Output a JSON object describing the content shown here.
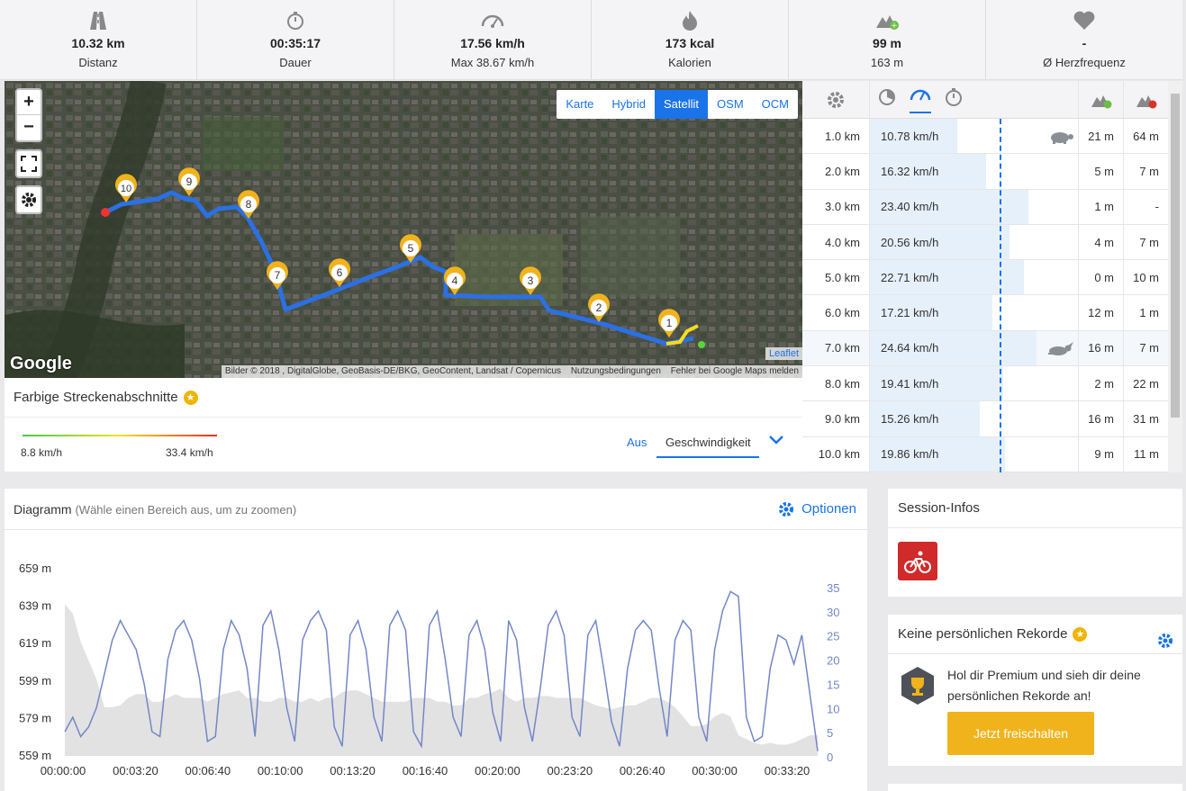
{
  "stats": [
    {
      "icon": "road-icon",
      "value": "10.32 km",
      "label": "Distanz"
    },
    {
      "icon": "stopwatch-icon",
      "value": "00:35:17",
      "label": "Dauer"
    },
    {
      "icon": "speedometer-icon",
      "value": "17.56 km/h",
      "label": "Max 38.67 km/h"
    },
    {
      "icon": "flame-icon",
      "value": "173 kcal",
      "label": "Kalorien"
    },
    {
      "icon": "elevation-up-icon",
      "value": "99 m",
      "label": "163 m"
    },
    {
      "icon": "heart-icon",
      "value": "-",
      "label": "Ø Herzfrequenz"
    }
  ],
  "map": {
    "zoom_in": "+",
    "zoom_out": "−",
    "layers": [
      "Karte",
      "Hybrid",
      "Satellit",
      "OSM",
      "OCM"
    ],
    "active_layer": "Satellit",
    "leaflet": "Leaflet",
    "google": "Google",
    "attribution": "Bilder © 2018 , DigitalGlobe, GeoBasis-DE/BKG, GeoContent, Landsat / Copernicus",
    "terms": "Nutzungsbedingungen",
    "report": "Fehler bei Google Maps melden",
    "markers": [
      "1",
      "2",
      "3",
      "4",
      "5",
      "6",
      "7",
      "8",
      "9",
      "10"
    ]
  },
  "segments": {
    "title": "Farbige Streckenabschnitte",
    "min_label": "8.8 km/h",
    "max_label": "33.4 km/h",
    "off": "Aus",
    "mode": "Geschwindigkeit"
  },
  "km_table": {
    "rows": [
      {
        "km": "1.0 km",
        "speed": "10.78 km/h",
        "up": "21 m",
        "down": "64 m",
        "fill": 0.42,
        "badge": "turtle-icon"
      },
      {
        "km": "2.0 km",
        "speed": "16.32 km/h",
        "up": "5 m",
        "down": "7 m",
        "fill": 0.56,
        "badge": ""
      },
      {
        "km": "3.0 km",
        "speed": "23.40 km/h",
        "up": "1 m",
        "down": "-",
        "fill": 0.76,
        "badge": ""
      },
      {
        "km": "4.0 km",
        "speed": "20.56 km/h",
        "up": "4 m",
        "down": "7 m",
        "fill": 0.67,
        "badge": ""
      },
      {
        "km": "5.0 km",
        "speed": "22.71 km/h",
        "up": "0 m",
        "down": "10 m",
        "fill": 0.74,
        "badge": ""
      },
      {
        "km": "6.0 km",
        "speed": "17.21 km/h",
        "up": "12 m",
        "down": "1 m",
        "fill": 0.59,
        "badge": ""
      },
      {
        "km": "7.0 km",
        "speed": "24.64 km/h",
        "up": "16 m",
        "down": "7 m",
        "fill": 0.8,
        "badge": "rabbit-icon"
      },
      {
        "km": "8.0 km",
        "speed": "19.41 km/h",
        "up": "2 m",
        "down": "22 m",
        "fill": 0.64,
        "badge": ""
      },
      {
        "km": "9.0 km",
        "speed": "15.26 km/h",
        "up": "16 m",
        "down": "31 m",
        "fill": 0.53,
        "badge": ""
      },
      {
        "km": "10.0 km",
        "speed": "19.86 km/h",
        "up": "9 m",
        "down": "11 m",
        "fill": 0.65,
        "badge": ""
      }
    ]
  },
  "diagram": {
    "title": "Diagramm",
    "hint": "(Wähle einen Bereich aus, um zu zoomen)",
    "options": "Optionen"
  },
  "chart_data": {
    "type": "line",
    "x_ticks": [
      "00:00:00",
      "00:03:20",
      "00:06:40",
      "00:10:00",
      "00:13:20",
      "00:16:40",
      "00:20:00",
      "00:23:20",
      "00:26:40",
      "00:30:00",
      "00:33:20"
    ],
    "y_left_ticks": [
      "659 m",
      "639 m",
      "619 m",
      "599 m",
      "579 m",
      "559 m"
    ],
    "y_right_ticks": [
      "35",
      "30",
      "25",
      "20",
      "15",
      "10",
      "5",
      "0"
    ],
    "ylim_left": [
      559,
      659
    ],
    "ylim_right": [
      0,
      35
    ],
    "series": [
      {
        "values": [
          5,
          8,
          4,
          6,
          10,
          17,
          24,
          28,
          25,
          22,
          15,
          5,
          4,
          20,
          26,
          28,
          24,
          16,
          3,
          4,
          22,
          28,
          25,
          18,
          4,
          27,
          30,
          22,
          10,
          3,
          24,
          28,
          30,
          26,
          6,
          2,
          25,
          28,
          22,
          8,
          3,
          27,
          30,
          26,
          5,
          2,
          27,
          30,
          20,
          8,
          4,
          25,
          28,
          22,
          9,
          3,
          28,
          24,
          10,
          3,
          14,
          27,
          30,
          25,
          8,
          4,
          25,
          28,
          18,
          7,
          2,
          18,
          26,
          28,
          26,
          14,
          4,
          24,
          28,
          26,
          8,
          3,
          22,
          30,
          34,
          33,
          8,
          3,
          4,
          18,
          25,
          24,
          19,
          25,
          13,
          1
        ],
        "color": "#7486c8"
      },
      {
        "values": [
          640,
          635,
          620,
          610,
          600,
          585,
          585,
          586,
          590,
          592,
          592,
          588,
          588,
          590,
          592,
          590,
          590,
          590,
          588,
          590,
          592,
          593,
          594,
          590,
          590,
          588,
          588,
          590,
          590,
          588,
          588,
          590,
          588,
          590,
          590,
          593,
          594,
          594,
          592,
          590,
          588,
          588,
          588,
          588,
          590,
          590,
          590,
          588,
          588,
          586,
          586,
          590,
          590,
          592,
          593,
          595,
          590,
          588,
          590,
          590,
          591,
          591,
          590,
          590,
          590,
          590,
          588,
          586,
          585,
          584,
          585,
          586,
          586,
          588,
          590,
          590,
          588,
          585,
          580,
          575,
          575,
          576,
          580,
          582,
          580,
          570,
          568,
          566,
          565,
          566,
          565,
          565,
          566,
          568,
          570,
          570
        ],
        "color": "#e2e2e2"
      }
    ]
  },
  "session": {
    "title": "Session-Infos",
    "icon": "cycling-icon"
  },
  "records": {
    "title": "Keine persönlichen Rekorde",
    "text": "Hol dir Premium und sieh dir deine persönlichen Rekorde an!",
    "button": "Jetzt freischalten"
  }
}
